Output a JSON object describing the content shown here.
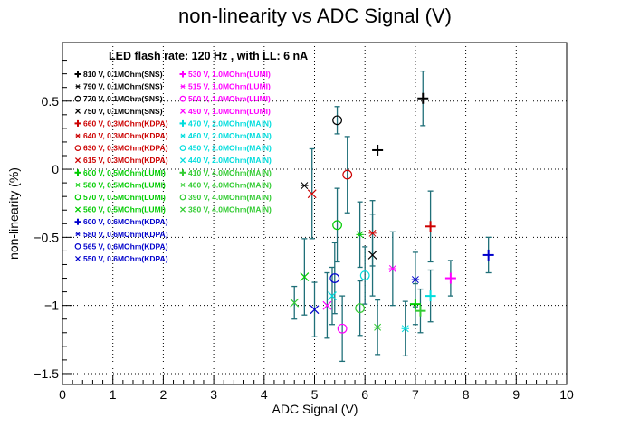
{
  "chart_data": {
    "type": "scatter",
    "title": "non-linearity vs ADC Signal (V)",
    "xlabel": "ADC Signal (V)",
    "ylabel": "non-linearity (%)",
    "annotation": "LED flash rate: 120 Hz , with LL: 6 nA",
    "xlim": [
      0,
      10
    ],
    "ylim": [
      -1.58,
      0.93
    ],
    "x_ticks": [
      "0",
      "1",
      "2",
      "3",
      "4",
      "5",
      "6",
      "7",
      "8",
      "9",
      "10"
    ],
    "y_ticks": [
      {
        "value": -1.5,
        "label": "−1.5"
      },
      {
        "value": -1,
        "label": "−1"
      },
      {
        "value": -0.5,
        "label": "−0.5"
      },
      {
        "value": 0,
        "label": "0"
      },
      {
        "value": 0.5,
        "label": "0.5"
      }
    ],
    "grid": true,
    "error_bar_color": "#1f6f78",
    "legend_placement": "top-left",
    "series": [
      {
        "name": "810 V, 0.1MOhm(SNS)",
        "marker": "plus",
        "color": "#000000",
        "x": 6.25,
        "y": 0.14,
        "err": 0
      },
      {
        "name": "790 V, 0.1MOhm(SNS)",
        "marker": "star",
        "color": "#000000",
        "x": 4.8,
        "y": -0.12,
        "err": 0
      },
      {
        "name": "770 V, 0.1MOhm(SNS)",
        "marker": "circle",
        "color": "#000000",
        "x": 5.45,
        "y": 0.36,
        "err": 0.1
      },
      {
        "name": "750 V, 0.1MOhm(SNS)",
        "marker": "cross",
        "color": "#000000",
        "x": 6.15,
        "y": -0.63,
        "err": 0.3
      },
      {
        "name": "660 V, 0.3MOhm(KDPA)",
        "marker": "plus",
        "color": "#cc0000",
        "x": 7.3,
        "y": -0.42,
        "err": 0.26
      },
      {
        "name": "640 V, 0.3MOhm(KDPA)",
        "marker": "star",
        "color": "#cc0000",
        "x": 6.15,
        "y": -0.47,
        "err": 0.24
      },
      {
        "name": "630 V, 0.3MOhm(KDPA)",
        "marker": "circle",
        "color": "#cc0000",
        "x": 5.65,
        "y": -0.04,
        "err": 0.28
      },
      {
        "name": "615 V, 0.3MOhm(KDPA)",
        "marker": "cross",
        "color": "#cc0000",
        "x": 4.95,
        "y": -0.18,
        "err": 0.33
      },
      {
        "name": "600 V, 0.5MOhm(LUMI)",
        "marker": "plus",
        "color": "#00cc00",
        "x": 7.0,
        "y": -0.99,
        "err": 0.15
      },
      {
        "name": "580 V, 0.5MOhm(LUMI)",
        "marker": "star",
        "color": "#00cc00",
        "x": 5.9,
        "y": -0.48,
        "err": 0.24
      },
      {
        "name": "570 V, 0.5MOhm(LUMI)",
        "marker": "circle",
        "color": "#00cc00",
        "x": 5.45,
        "y": -0.41,
        "err": 0.27
      },
      {
        "name": "560 V, 0.5MOhm(LUMI)",
        "marker": "cross",
        "color": "#00cc00",
        "x": 4.8,
        "y": -0.79,
        "err": 0.28
      },
      {
        "name": "600 V, 0.6MOhm(KDPA)",
        "marker": "plus",
        "color": "#0000cc",
        "x": 8.45,
        "y": -0.63,
        "err": 0.13
      },
      {
        "name": "580 V, 0.6MOhm(KDPA)",
        "marker": "star",
        "color": "#0000cc",
        "x": 7.0,
        "y": -0.81,
        "err": 0.2
      },
      {
        "name": "565 V, 0.6MOhm(KDPA)",
        "marker": "circle",
        "color": "#0000cc",
        "x": 5.4,
        "y": -0.8,
        "err": 0.26
      },
      {
        "name": "550 V, 0.6MOhm(KDPA)",
        "marker": "cross",
        "color": "#0000cc",
        "x": 5.0,
        "y": -1.03,
        "err": 0.2
      },
      {
        "name": "530 V, 1.0MOhm(LUMI)",
        "marker": "plus",
        "color": "#ff00ff",
        "x": 7.7,
        "y": -0.8,
        "err": 0.13
      },
      {
        "name": "515 V, 1.0MOhm(LUMI)",
        "marker": "star",
        "color": "#ff00ff",
        "x": 6.55,
        "y": -0.73,
        "err": 0.27
      },
      {
        "name": "500 V, 1.0MOhm(LUMI)",
        "marker": "circle",
        "color": "#ff00ff",
        "x": 5.55,
        "y": -1.17,
        "err": 0.24
      },
      {
        "name": "490 V, 1.0MOhm(LUMI)",
        "marker": "cross",
        "color": "#ff00ff",
        "x": 5.25,
        "y": -1.0,
        "err": 0.24
      },
      {
        "name": "470 V, 2.0MOhm(MAIN)",
        "marker": "plus",
        "color": "#00dddd",
        "x": 7.3,
        "y": -0.93,
        "err": 0.19
      },
      {
        "name": "460 V, 2.0MOhm(MAIN)",
        "marker": "star",
        "color": "#00dddd",
        "x": 6.8,
        "y": -1.17,
        "err": 0.2
      },
      {
        "name": "450 V, 2.0MOhm(MAIN)",
        "marker": "circle",
        "color": "#00dddd",
        "x": 6.0,
        "y": -0.78,
        "err": 0.21
      },
      {
        "name": "440 V, 2.0MOhm(MAIN)",
        "marker": "cross",
        "color": "#00dddd",
        "x": 5.35,
        "y": -0.93,
        "err": 0.21
      },
      {
        "name": "410 V, 4.0MOhm(MAIN)",
        "marker": "plus",
        "color": "#33cc33",
        "x": 7.1,
        "y": -1.04,
        "err": 0.16
      },
      {
        "name": "400 V, 4.0MOhm(MAIN)",
        "marker": "star",
        "color": "#33cc33",
        "x": 6.25,
        "y": -1.16,
        "err": 0.2
      },
      {
        "name": "390 V, 4.0MOhm(MAIN)",
        "marker": "circle",
        "color": "#33cc33",
        "x": 5.9,
        "y": -1.02,
        "err": 0.2
      },
      {
        "name": "380 V, 4.0MOhm(MAIN)",
        "marker": "cross",
        "color": "#33cc33",
        "x": 4.6,
        "y": -0.98,
        "err": 0.12
      },
      {
        "name": "",
        "marker": "plus",
        "color": "#000000",
        "x": 7.15,
        "y": 0.52,
        "err": 0.2
      }
    ]
  }
}
